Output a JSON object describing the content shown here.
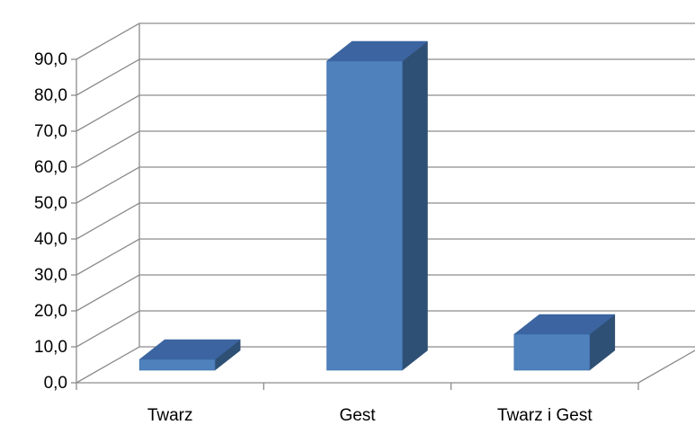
{
  "chart_data": {
    "type": "bar",
    "style": "3d-column",
    "title": "",
    "xlabel": "",
    "ylabel": "",
    "categories": [
      "Twarz",
      "Gest",
      "Twarz i Gest"
    ],
    "values": [
      3.0,
      86.0,
      10.0
    ],
    "ylim": [
      0,
      90
    ],
    "y_ticks": [
      "0,0",
      "10,0",
      "20,0",
      "30,0",
      "40,0",
      "50,0",
      "60,0",
      "70,0",
      "80,0",
      "90,0"
    ],
    "y_tick_values": [
      0,
      10,
      20,
      30,
      40,
      50,
      60,
      70,
      80,
      90
    ],
    "grid": true,
    "legend": "none",
    "colors": {
      "bar_front": "#4f81bd",
      "bar_top": "#3b64a0",
      "bar_side": "#2f5075",
      "gridline": "#8c8c8c",
      "text": "#000000"
    }
  }
}
